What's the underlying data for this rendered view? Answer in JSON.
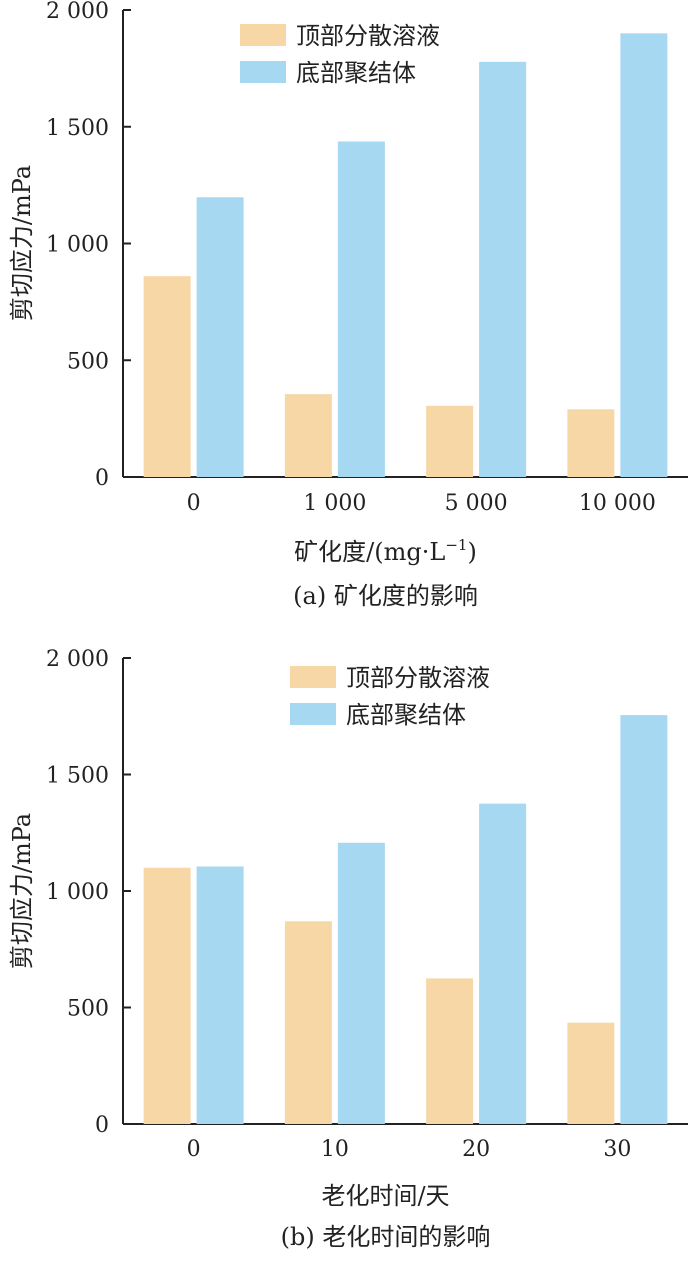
{
  "colors": {
    "series_top": "#f8d7a7",
    "series_bottom": "#a6d8f2",
    "axis": "#222222"
  },
  "chart_data": [
    {
      "type": "bar",
      "caption": "(a) 矿化度的影响",
      "ylabel": "剪切应力/mPa",
      "xlabel_main": "矿化度/(mg·L",
      "xlabel_sup": "−1",
      "xlabel_close": ")",
      "ylim": [
        0,
        2000
      ],
      "yticks": [
        0,
        500,
        1000,
        1500,
        2000
      ],
      "ytick_labels": [
        "0",
        "500",
        "1 000",
        "1 500",
        "2 000"
      ],
      "categories": [
        "0",
        "1 000",
        "5 000",
        "10 000"
      ],
      "legend_position": "top-center",
      "series": [
        {
          "name": "顶部分散溶液",
          "values": [
            860,
            355,
            305,
            290
          ]
        },
        {
          "name": "底部聚结体",
          "values": [
            1198,
            1437,
            1778,
            1900
          ]
        }
      ]
    },
    {
      "type": "bar",
      "caption": "(b) 老化时间的影响",
      "ylabel": "剪切应力/mPa",
      "xlabel_main": "老化时间/天",
      "xlabel_sup": "",
      "xlabel_close": "",
      "ylim": [
        0,
        2000
      ],
      "yticks": [
        0,
        500,
        1000,
        1500,
        2000
      ],
      "ytick_labels": [
        "0",
        "500",
        "1 000",
        "1 500",
        "2 000"
      ],
      "categories": [
        "0",
        "10",
        "20",
        "30"
      ],
      "legend_position": "top-center",
      "series": [
        {
          "name": "顶部分散溶液",
          "values": [
            1100,
            870,
            625,
            435
          ]
        },
        {
          "name": "底部聚结体",
          "values": [
            1105,
            1207,
            1375,
            1755
          ]
        }
      ]
    }
  ]
}
